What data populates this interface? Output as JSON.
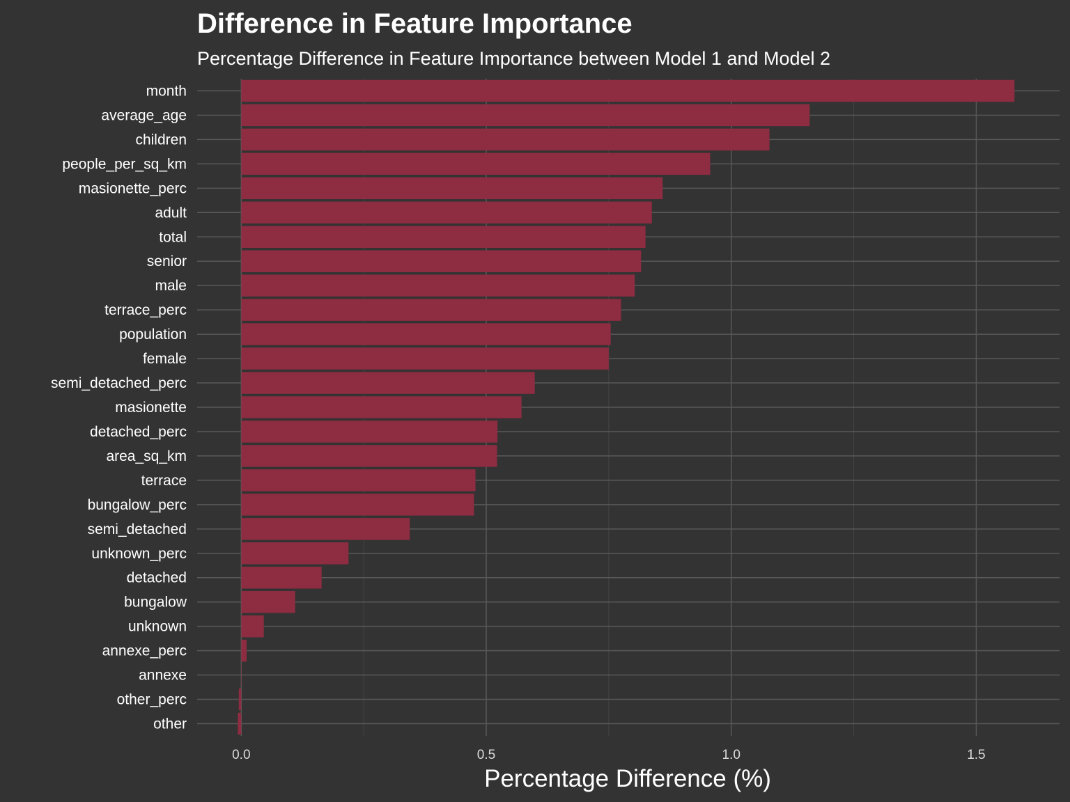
{
  "chart_data": {
    "type": "bar",
    "orientation": "horizontal",
    "title": "Difference in Feature Importance",
    "subtitle": "Percentage Difference in Feature Importance between Model 1 and Model 2",
    "xlabel": "Percentage Difference (%)",
    "ylabel": "",
    "xlim": [
      -0.09,
      1.67
    ],
    "xticks": [
      0.0,
      0.5,
      1.0,
      1.5
    ],
    "xtick_labels": [
      "0.0",
      "0.5",
      "1.0",
      "1.5"
    ],
    "grid": true,
    "bar_color": "#8E2C41",
    "background_color": "#333333",
    "grid_color": "#595959",
    "categories": [
      "month",
      "average_age",
      "children",
      "people_per_sq_km",
      "masionette_perc",
      "adult",
      "total",
      "senior",
      "male",
      "terrace_perc",
      "population",
      "female",
      "semi_detached_perc",
      "masionette",
      "detached_perc",
      "area_sq_km",
      "terrace",
      "bungalow_perc",
      "semi_detached",
      "unknown_perc",
      "detached",
      "bungalow",
      "unknown",
      "annexe_perc",
      "annexe",
      "other_perc",
      "other"
    ],
    "values": [
      1.578,
      1.16,
      1.078,
      0.957,
      0.86,
      0.838,
      0.825,
      0.816,
      0.803,
      0.775,
      0.754,
      0.75,
      0.599,
      0.572,
      0.523,
      0.522,
      0.478,
      0.475,
      0.344,
      0.219,
      0.164,
      0.11,
      0.046,
      0.011,
      0.0005,
      -0.005,
      -0.007
    ]
  }
}
